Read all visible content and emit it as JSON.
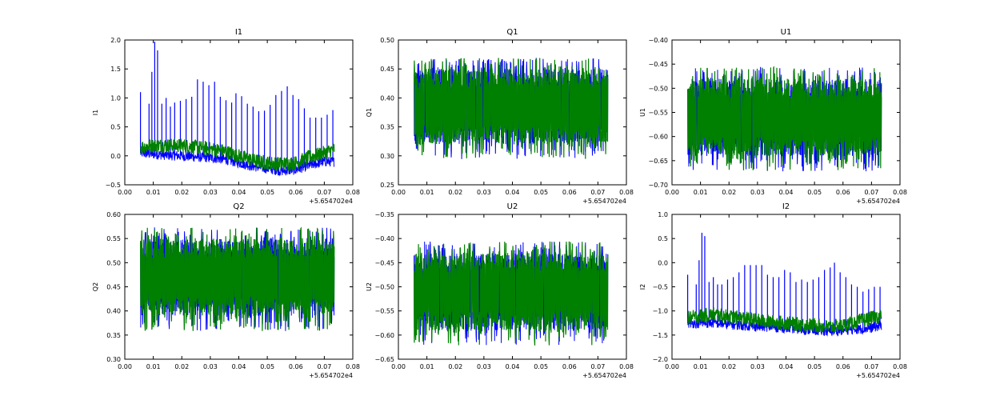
{
  "figure": {
    "background": "#ffffff",
    "line_colors": [
      "#0000ff",
      "#008000"
    ]
  },
  "chart_data": [
    {
      "type": "line",
      "title": "I1",
      "ylabel": "I1",
      "xlabel": "",
      "x_offset_label": "+5.654702e4",
      "xlim": [
        0.0,
        0.08
      ],
      "ylim": [
        -0.5,
        2.0
      ],
      "xticks": [
        "0.00",
        "0.01",
        "0.02",
        "0.03",
        "0.04",
        "0.05",
        "0.06",
        "0.07",
        "0.08"
      ],
      "yticks": [
        "−0.5",
        "0.0",
        "0.5",
        "1.0",
        "1.5",
        "2.0"
      ],
      "x_range": [
        0.0055,
        0.0735
      ],
      "series": [
        {
          "color": "#0000ff",
          "x": [
            0.0055,
            0.01,
            0.015,
            0.02,
            0.025,
            0.03,
            0.035,
            0.04,
            0.045,
            0.05,
            0.055,
            0.06,
            0.065,
            0.07,
            0.0735
          ],
          "values": [
            0.05,
            0.03,
            0.01,
            0.0,
            -0.02,
            -0.03,
            -0.06,
            -0.12,
            -0.18,
            -0.22,
            -0.26,
            -0.24,
            -0.16,
            -0.1,
            -0.1
          ],
          "spikes": [
            [
              0.0055,
              1.1
            ],
            [
              0.0085,
              0.9
            ],
            [
              0.0095,
              1.45
            ],
            [
              0.0105,
              1.97
            ],
            [
              0.0115,
              1.82
            ],
            [
              0.013,
              0.9
            ],
            [
              0.0145,
              1.0
            ],
            [
              0.016,
              0.85
            ],
            [
              0.0175,
              0.92
            ],
            [
              0.0195,
              0.95
            ],
            [
              0.0215,
              0.98
            ],
            [
              0.0235,
              1.02
            ],
            [
              0.0255,
              1.32
            ],
            [
              0.0275,
              1.28
            ],
            [
              0.0295,
              1.22
            ],
            [
              0.0315,
              1.28
            ],
            [
              0.0335,
              1.02
            ],
            [
              0.0355,
              0.96
            ],
            [
              0.0375,
              0.92
            ],
            [
              0.039,
              1.08
            ],
            [
              0.041,
              1.03
            ],
            [
              0.043,
              0.9
            ],
            [
              0.045,
              0.85
            ],
            [
              0.047,
              0.77
            ],
            [
              0.049,
              0.78
            ],
            [
              0.051,
              0.88
            ],
            [
              0.053,
              1.05
            ],
            [
              0.055,
              1.12
            ],
            [
              0.057,
              1.2
            ],
            [
              0.059,
              1.05
            ],
            [
              0.061,
              0.98
            ],
            [
              0.063,
              0.82
            ],
            [
              0.065,
              0.66
            ],
            [
              0.067,
              0.66
            ],
            [
              0.069,
              0.66
            ],
            [
              0.071,
              0.71
            ],
            [
              0.073,
              0.79
            ]
          ]
        },
        {
          "color": "#008000",
          "x": [
            0.0055,
            0.01,
            0.015,
            0.02,
            0.025,
            0.03,
            0.035,
            0.04,
            0.045,
            0.05,
            0.055,
            0.06,
            0.065,
            0.07,
            0.0735
          ],
          "values": [
            0.15,
            0.18,
            0.18,
            0.18,
            0.15,
            0.12,
            0.08,
            0.0,
            -0.08,
            -0.12,
            -0.14,
            -0.12,
            -0.02,
            0.05,
            0.12
          ]
        }
      ]
    },
    {
      "type": "line",
      "title": "Q1",
      "ylabel": "Q1",
      "xlabel": "",
      "x_offset_label": "+5.654702e4",
      "xlim": [
        0.0,
        0.08
      ],
      "ylim": [
        0.25,
        0.5
      ],
      "xticks": [
        "0.00",
        "0.01",
        "0.02",
        "0.03",
        "0.04",
        "0.05",
        "0.06",
        "0.07",
        "0.08"
      ],
      "yticks": [
        "0.25",
        "0.30",
        "0.35",
        "0.40",
        "0.45",
        "0.50"
      ],
      "x_range": [
        0.0055,
        0.0735
      ],
      "series": [
        {
          "color": "#0000ff",
          "band": [
            0.32,
            0.45
          ]
        },
        {
          "color": "#008000",
          "band": [
            0.32,
            0.45
          ]
        }
      ]
    },
    {
      "type": "line",
      "title": "U1",
      "ylabel": "U1",
      "xlabel": "",
      "x_offset_label": "+5.654702e4",
      "xlim": [
        0.0,
        0.08
      ],
      "ylim": [
        -0.7,
        -0.4
      ],
      "xticks": [
        "0.00",
        "0.01",
        "0.02",
        "0.03",
        "0.04",
        "0.05",
        "0.06",
        "0.07",
        "0.08"
      ],
      "yticks": [
        "−0.70",
        "−0.65",
        "−0.60",
        "−0.55",
        "−0.50",
        "−0.45",
        "−0.40"
      ],
      "x_range": [
        0.0055,
        0.0735
      ],
      "series": [
        {
          "color": "#0000ff",
          "band": [
            -0.64,
            -0.48
          ]
        },
        {
          "color": "#008000",
          "band": [
            -0.64,
            -0.48
          ]
        }
      ]
    },
    {
      "type": "line",
      "title": "Q2",
      "ylabel": "Q2",
      "xlabel": "",
      "x_offset_label": "+5.654702e4",
      "xlim": [
        0.0,
        0.08
      ],
      "ylim": [
        0.3,
        0.6
      ],
      "xticks": [
        "0.00",
        "0.01",
        "0.02",
        "0.03",
        "0.04",
        "0.05",
        "0.06",
        "0.07",
        "0.08"
      ],
      "yticks": [
        "0.30",
        "0.35",
        "0.40",
        "0.45",
        "0.50",
        "0.55",
        "0.60"
      ],
      "x_range": [
        0.0055,
        0.0735
      ],
      "series": [
        {
          "color": "#0000ff",
          "band": [
            0.39,
            0.55
          ]
        },
        {
          "color": "#008000",
          "band": [
            0.39,
            0.55
          ]
        }
      ]
    },
    {
      "type": "line",
      "title": "U2",
      "ylabel": "U2",
      "xlabel": "",
      "x_offset_label": "+5.654702e4",
      "xlim": [
        0.0,
        0.08
      ],
      "ylim": [
        -0.65,
        -0.35
      ],
      "xticks": [
        "0.00",
        "0.01",
        "0.02",
        "0.03",
        "0.04",
        "0.05",
        "0.06",
        "0.07",
        "0.08"
      ],
      "yticks": [
        "−0.65",
        "−0.60",
        "−0.55",
        "−0.50",
        "−0.45",
        "−0.40",
        "−0.35"
      ],
      "x_range": [
        0.0055,
        0.0735
      ],
      "series": [
        {
          "color": "#0000ff",
          "band": [
            -0.59,
            -0.43
          ]
        },
        {
          "color": "#008000",
          "band": [
            -0.59,
            -0.43
          ]
        }
      ]
    },
    {
      "type": "line",
      "title": "I2",
      "ylabel": "I2",
      "xlabel": "",
      "x_offset_label": "+5.654702e4",
      "xlim": [
        0.0,
        0.08
      ],
      "ylim": [
        -2.0,
        1.0
      ],
      "xticks": [
        "0.00",
        "0.01",
        "0.02",
        "0.03",
        "0.04",
        "0.05",
        "0.06",
        "0.07",
        "0.08"
      ],
      "yticks": [
        "−2.0",
        "−1.5",
        "−1.0",
        "−0.5",
        "0.0",
        "0.5",
        "1.0"
      ],
      "x_range": [
        0.0055,
        0.0735
      ],
      "series": [
        {
          "color": "#0000ff",
          "x": [
            0.0055,
            0.01,
            0.015,
            0.02,
            0.025,
            0.03,
            0.035,
            0.04,
            0.045,
            0.05,
            0.055,
            0.06,
            0.065,
            0.07,
            0.0735
          ],
          "values": [
            -1.25,
            -1.25,
            -1.25,
            -1.28,
            -1.3,
            -1.32,
            -1.33,
            -1.35,
            -1.38,
            -1.4,
            -1.42,
            -1.4,
            -1.38,
            -1.35,
            -1.3
          ],
          "spikes": [
            [
              0.0055,
              -0.25
            ],
            [
              0.0085,
              -0.45
            ],
            [
              0.0095,
              0.05
            ],
            [
              0.0105,
              0.62
            ],
            [
              0.0115,
              0.55
            ],
            [
              0.013,
              -0.4
            ],
            [
              0.0145,
              -0.3
            ],
            [
              0.016,
              -0.45
            ],
            [
              0.0175,
              -0.45
            ],
            [
              0.0195,
              -0.35
            ],
            [
              0.0215,
              -0.3
            ],
            [
              0.0235,
              -0.2
            ],
            [
              0.0255,
              -0.05
            ],
            [
              0.0275,
              -0.05
            ],
            [
              0.0295,
              -0.05
            ],
            [
              0.0315,
              -0.05
            ],
            [
              0.0335,
              -0.25
            ],
            [
              0.0355,
              -0.3
            ],
            [
              0.0375,
              -0.3
            ],
            [
              0.0395,
              -0.15
            ],
            [
              0.0415,
              -0.2
            ],
            [
              0.0435,
              -0.4
            ],
            [
              0.0455,
              -0.35
            ],
            [
              0.0475,
              -0.4
            ],
            [
              0.0495,
              -0.35
            ],
            [
              0.0515,
              -0.3
            ],
            [
              0.0535,
              -0.15
            ],
            [
              0.0555,
              -0.1
            ],
            [
              0.057,
              0.0
            ],
            [
              0.059,
              -0.2
            ],
            [
              0.061,
              -0.3
            ],
            [
              0.063,
              -0.45
            ],
            [
              0.065,
              -0.5
            ],
            [
              0.067,
              -0.6
            ],
            [
              0.069,
              -0.55
            ],
            [
              0.071,
              -0.5
            ],
            [
              0.073,
              -0.5
            ]
          ]
        },
        {
          "color": "#008000",
          "x": [
            0.0055,
            0.01,
            0.015,
            0.02,
            0.025,
            0.03,
            0.035,
            0.04,
            0.045,
            0.05,
            0.055,
            0.06,
            0.065,
            0.07,
            0.0735
          ],
          "values": [
            -1.15,
            -1.1,
            -1.08,
            -1.12,
            -1.15,
            -1.2,
            -1.23,
            -1.25,
            -1.28,
            -1.3,
            -1.33,
            -1.3,
            -1.22,
            -1.15,
            -1.1
          ]
        }
      ]
    }
  ]
}
